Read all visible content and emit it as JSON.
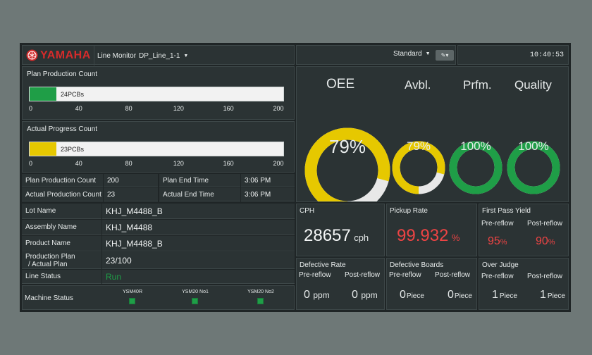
{
  "header": {
    "logo_text": "YAMAHA",
    "line_monitor_label": "Line Monitor",
    "line_name": "DP_Line_1-1",
    "view_mode": "Standard",
    "time": "10:40:53"
  },
  "plan_count": {
    "title": "Plan Production Count",
    "bar_text": "24PCBs",
    "fill_fraction": 0.105,
    "ticks": [
      "0",
      "40",
      "80",
      "120",
      "160",
      "200"
    ]
  },
  "actual_count": {
    "title": "Actual Progress Count",
    "bar_text": "23PCBs",
    "fill_fraction": 0.105,
    "ticks": [
      "0",
      "40",
      "80",
      "120",
      "160",
      "200"
    ]
  },
  "times": {
    "plan_prod_label": "Plan Production Count",
    "plan_prod_value": "200",
    "actual_prod_label": "Actual Production Count",
    "actual_prod_value": "23",
    "plan_end_label": "Plan End Time",
    "plan_end_value": "3:06 PM",
    "actual_end_label": "Actual End Time",
    "actual_end_value": "3:06 PM"
  },
  "info": {
    "lot_label": "Lot Name",
    "lot_value": "KHJ_M4488_B",
    "assembly_label": "Assembly Name",
    "assembly_value": "KHJ_M4488",
    "product_label": "Product Name",
    "product_value": "KHJ_M4488_B",
    "plan_label_1": "Production Plan",
    "plan_label_2": "/ Actual Plan",
    "plan_value": "23/100",
    "line_status_label": "Line Status",
    "line_status_value": "Run",
    "machine_status_label": "Machine Status",
    "machines": [
      "YSM40R",
      "YSM20 No1",
      "YSM20 No2"
    ]
  },
  "oee": {
    "titles": [
      "OEE",
      "Avbl.",
      "Prfm.",
      "Quality"
    ],
    "values": [
      "79%",
      "79%",
      "100%",
      "100%"
    ],
    "fractions": [
      0.79,
      0.79,
      1.0,
      1.0
    ],
    "colors": [
      "#e6c800",
      "#e6c800",
      "#1f9e47",
      "#1f9e47"
    ],
    "track_color": "#e8e8e8"
  },
  "metrics": {
    "cph_title": "CPH",
    "cph_value": "28657",
    "cph_unit": "cph",
    "pickup_title": "Pickup Rate",
    "pickup_value": "99.932",
    "pickup_unit": "%",
    "fpy_title": "First Pass Yield",
    "fpy_pre_label": "Pre-reflow",
    "fpy_post_label": "Post-reflow",
    "fpy_pre_value": "95",
    "fpy_post_value": "90",
    "fpy_unit": "%",
    "defrate_title": "Defective Rate",
    "defrate_pre_label": "Pre-reflow",
    "defrate_post_label": "Post-reflow",
    "defrate_pre_value": "0",
    "defrate_post_value": "0",
    "defrate_unit": "ppm",
    "defboards_title": "Defective Boards",
    "defboards_pre_label": "Pre-reflow",
    "defboards_post_label": "Post-reflow",
    "defboards_pre_value": "0",
    "defboards_post_value": "0",
    "defboards_unit": "Piece",
    "overjudge_title": "Over Judge",
    "overjudge_pre_label": "Pre-reflow",
    "overjudge_post_label": "Post-reflow",
    "overjudge_pre_value": "1",
    "overjudge_post_value": "1",
    "overjudge_unit": "Piece"
  },
  "colors": {
    "accent_green": "#1f9e47",
    "accent_yellow": "#e6c800",
    "alert_red": "#ee4444",
    "logo_red": "#d52b2b"
  }
}
